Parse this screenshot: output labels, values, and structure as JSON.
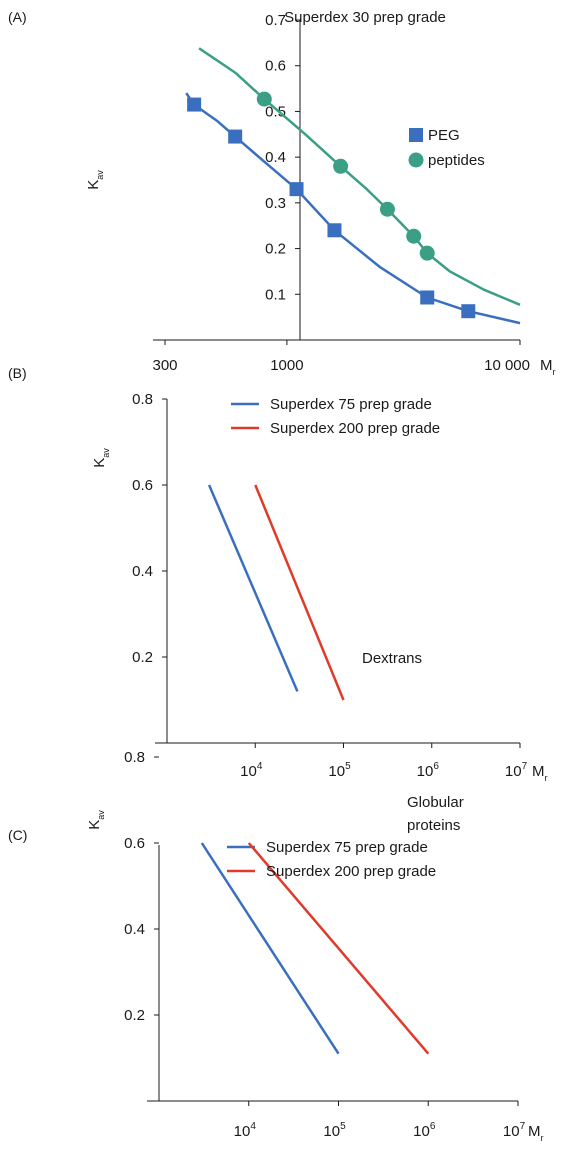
{
  "chart_data": [
    {
      "panel": "(A)",
      "type": "line",
      "title": "Superdex 30 prep grade",
      "xlabel": "M",
      "xlabel_sub": "r",
      "ylabel": "K",
      "ylabel_sub": "av",
      "xscale": "log",
      "xlim": [
        300,
        10000
      ],
      "ylim": [
        0,
        0.7
      ],
      "x_ticks": [
        {
          "value": 300,
          "label": "300"
        },
        {
          "value": 1000,
          "label": "1000"
        },
        {
          "value": 10000,
          "label": "10 000"
        }
      ],
      "y_ticks": [
        {
          "value": 0.1,
          "label": "0.1"
        },
        {
          "value": 0.2,
          "label": "0.2"
        },
        {
          "value": 0.3,
          "label": "0.3"
        },
        {
          "value": 0.4,
          "label": "0.4"
        },
        {
          "value": 0.5,
          "label": "0.5"
        },
        {
          "value": 0.6,
          "label": "0.6"
        },
        {
          "value": 0.7,
          "label": "0.7"
        }
      ],
      "legend_position": "right",
      "series": [
        {
          "name": "PEG",
          "color": "#3a6fc0",
          "marker": "square",
          "points": [
            [
              400,
              0.515
            ],
            [
              600,
              0.445
            ],
            [
              1100,
              0.33
            ],
            [
              1600,
              0.24
            ],
            [
              4000,
              0.093
            ],
            [
              6000,
              0.063
            ]
          ],
          "curve": [
            [
              370,
              0.54
            ],
            [
              400,
              0.515
            ],
            [
              500,
              0.48
            ],
            [
              600,
              0.445
            ],
            [
              800,
              0.39
            ],
            [
              1100,
              0.33
            ],
            [
              1600,
              0.24
            ],
            [
              2500,
              0.16
            ],
            [
              4000,
              0.093
            ],
            [
              6000,
              0.063
            ],
            [
              10000,
              0.037
            ]
          ]
        },
        {
          "name": "peptides",
          "color": "#3a9f85",
          "marker": "circle",
          "points": [
            [
              800,
              0.527
            ],
            [
              1700,
              0.38
            ],
            [
              2700,
              0.286
            ],
            [
              3500,
              0.227
            ],
            [
              4000,
              0.19
            ]
          ],
          "curve": [
            [
              420,
              0.638
            ],
            [
              600,
              0.585
            ],
            [
              800,
              0.527
            ],
            [
              1200,
              0.45
            ],
            [
              1700,
              0.38
            ],
            [
              2200,
              0.33
            ],
            [
              2700,
              0.286
            ],
            [
              3500,
              0.227
            ],
            [
              4000,
              0.19
            ],
            [
              5000,
              0.15
            ],
            [
              7000,
              0.11
            ],
            [
              10000,
              0.077
            ]
          ]
        }
      ]
    },
    {
      "panel": "(B)",
      "type": "line",
      "annotation": "Dextrans",
      "xlabel": "M",
      "xlabel_sub": "r",
      "ylabel": "K",
      "ylabel_sub": "av",
      "xscale": "log",
      "xlim": [
        1000,
        10000000
      ],
      "ylim": [
        0,
        0.8
      ],
      "x_ticks": [
        {
          "value": 10000,
          "base": "10",
          "exp": "4"
        },
        {
          "value": 100000,
          "base": "10",
          "exp": "5"
        },
        {
          "value": 1000000,
          "base": "10",
          "exp": "6"
        },
        {
          "value": 10000000,
          "base": "10",
          "exp": "7"
        }
      ],
      "y_ticks": [
        {
          "value": 0.2,
          "label": "0.2"
        },
        {
          "value": 0.4,
          "label": "0.4"
        },
        {
          "value": 0.6,
          "label": "0.6"
        },
        {
          "value": 0.8,
          "label": "0.8"
        }
      ],
      "legend_position": "top",
      "series": [
        {
          "name": "Superdex 75 prep grade",
          "color": "#3a6fc0",
          "points": [
            [
              3000,
              0.6
            ],
            [
              30000,
              0.12
            ]
          ]
        },
        {
          "name": "Superdex 200 prep grade",
          "color": "#e03a2a",
          "points": [
            [
              10000,
              0.6
            ],
            [
              100000,
              0.1
            ]
          ]
        }
      ]
    },
    {
      "panel": "(C)",
      "type": "line",
      "annotation": "Globular proteins",
      "xlabel": "M",
      "xlabel_sub": "r",
      "ylabel": "K",
      "ylabel_sub": "av",
      "xscale": "log",
      "xlim": [
        1000,
        10000000
      ],
      "ylim": [
        0,
        0.8
      ],
      "x_ticks": [
        {
          "value": 10000,
          "base": "10",
          "exp": "4"
        },
        {
          "value": 100000,
          "base": "10",
          "exp": "5"
        },
        {
          "value": 1000000,
          "base": "10",
          "exp": "6"
        },
        {
          "value": 10000000,
          "base": "10",
          "exp": "7"
        }
      ],
      "y_ticks": [
        {
          "value": 0.2,
          "label": "0.2"
        },
        {
          "value": 0.4,
          "label": "0.4"
        },
        {
          "value": 0.6,
          "label": "0.6"
        },
        {
          "value": 0.8,
          "label": "0.8"
        }
      ],
      "legend_position": "top",
      "series": [
        {
          "name": "Superdex 75 prep grade",
          "color": "#3a6fc0",
          "points": [
            [
              3000,
              0.6
            ],
            [
              100000,
              0.11
            ]
          ]
        },
        {
          "name": "Superdex 200 prep grade",
          "color": "#e03a2a",
          "points": [
            [
              10000,
              0.6
            ],
            [
              1000000,
              0.11
            ]
          ]
        }
      ]
    }
  ]
}
